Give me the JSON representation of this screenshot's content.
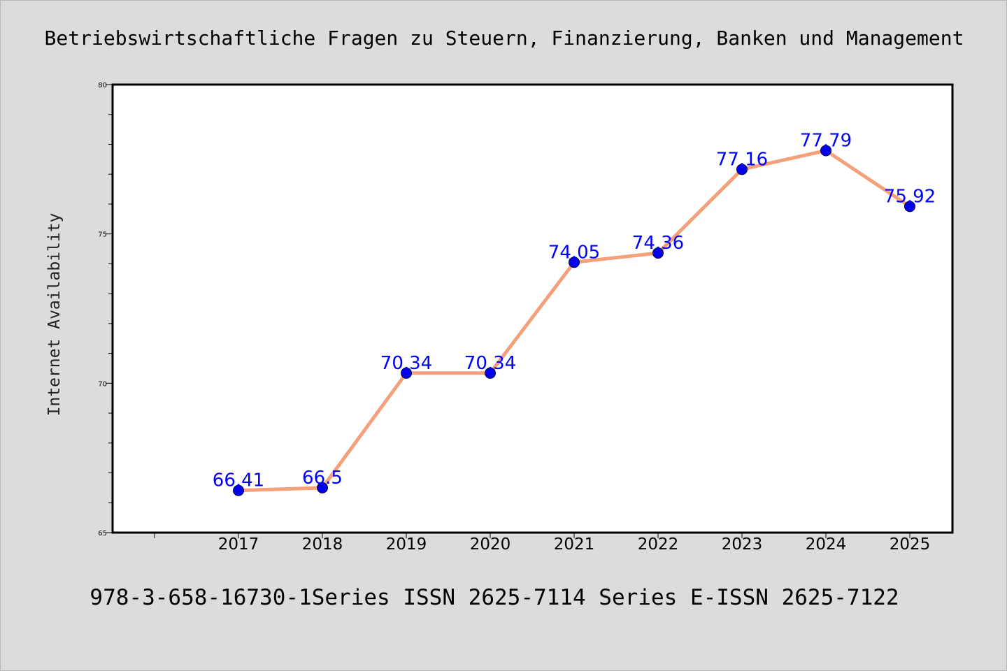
{
  "page": {
    "title": "Betriebswirtschaftliche Fragen zu Steuern, Finanzierung, Banken und Management",
    "footer": "978-3-658-16730-1Series ISSN 2625-7114 Series E-ISSN 2625-7122"
  },
  "chart_data": {
    "type": "line",
    "title": "Betriebswirtschaftliche Fragen zu Steuern, Finanzierung, Banken und Management",
    "xlabel": "",
    "ylabel": "Internet Availability",
    "categories": [
      "2017",
      "2018",
      "2019",
      "2020",
      "2021",
      "2022",
      "2023",
      "2024",
      "2025"
    ],
    "series": [
      {
        "values": [
          66.41,
          66.5,
          70.34,
          70.34,
          74.05,
          74.36,
          77.16,
          77.79,
          75.92
        ],
        "data_labels": [
          "66.41",
          "66.5",
          "70.34",
          "70.34",
          "74.05",
          "74.36",
          "77.16",
          "77.79",
          "75.92"
        ]
      }
    ],
    "ylim": [
      65,
      80
    ],
    "yticks": [
      "65",
      "70",
      "75",
      "80"
    ],
    "grid": false,
    "legend": "none",
    "colors": {
      "line": "#f4a07a",
      "marker": "#0000ee",
      "label": "#0000ff",
      "plot_bg": "#ffffff",
      "page_bg": "#dcdcdc"
    }
  }
}
